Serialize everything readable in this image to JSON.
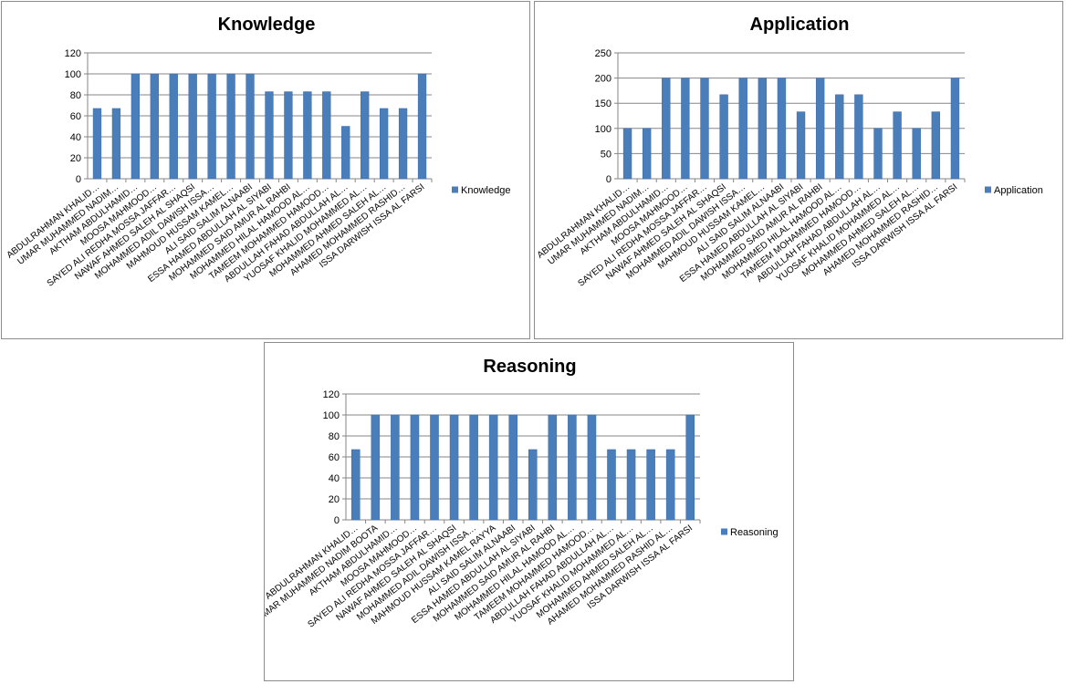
{
  "colors": {
    "bar": "#4a7ebb",
    "bar_edge": "#3a6aa8",
    "grid": "#868686",
    "axis": "#868686"
  },
  "chart_data": [
    {
      "type": "bar",
      "title": "Knowledge",
      "legend": "right",
      "grid": true,
      "ylim": [
        0,
        120
      ],
      "yticks": [
        0,
        20,
        40,
        60,
        80,
        100,
        120
      ],
      "categories": [
        "ABDULRAHMAN KHALID…",
        "UMAR MUHAMMED NADIM…",
        "AKTHAM ABDULHAMID…",
        "MOOSA MAHMOOD…",
        "SAYED ALI REDHA MOSSA JAFFAR…",
        "NAWAF AHMED SALEH AL SHAQSI",
        "MOHAMMED ADIL DAWISH ISSA…",
        "MAHMOUD HUSSAM KAMEL…",
        "ALI SAID SALIM ALNAABI",
        "ESSA HAMED ABDULLAH AL SIYABI",
        "MOHAMMED SAID AMUR AL RAHBI",
        "MOHAMMED HILAL HAMOOD AL…",
        "TAMEEM MOHAMMED HAMOOD…",
        "ABDULLAH FAHAD ABDULLAH AL…",
        "YUOSAF KHALID MOHAMMED AL…",
        "MOHAMMED AHMED SALEH AL…",
        "AHAMED MOHAMMED RASHID…",
        "ISSA DARWISH ISSA AL FARSI"
      ],
      "series": [
        {
          "name": "Knowledge",
          "values": [
            67,
            67,
            100,
            100,
            100,
            100,
            100,
            100,
            100,
            83,
            83,
            83,
            83,
            50,
            83,
            67,
            67,
            100
          ]
        }
      ]
    },
    {
      "type": "bar",
      "title": "Application",
      "legend": "right",
      "grid": true,
      "ylim": [
        0,
        250
      ],
      "yticks": [
        0,
        50,
        100,
        150,
        200,
        250
      ],
      "categories": [
        "ABDULRAHMAN KHALID…",
        "UMAR MUHAMMED NADIM…",
        "AKTHAM ABDULHAMID…",
        "MOOSA MAHMOOD…",
        "SAYED ALI REDHA MOSSA JAFFAR…",
        "NAWAF AHMED SALEH AL SHAQSI",
        "MOHAMMED ADIL DAWISH ISSA…",
        "MAHMOUD HUSSAM KAMEL…",
        "ALI SAID SALIM ALNAABI",
        "ESSA HAMED ABDULLAH AL SIYABI",
        "MOHAMMED SAID AMUR AL RAHBI",
        "MOHAMMED HILAL HAMOOD AL…",
        "TAMEEM MOHAMMED HAMOOD…",
        "ABDULLAH FAHAD ABDULLAH AL…",
        "YUOSAF KHALID MOHAMMED AL…",
        "MOHAMMED AHMED SALEH AL…",
        "AHAMED MOHAMMED RASHID…",
        "ISSA DARWISH ISSA AL FARSI"
      ],
      "series": [
        {
          "name": "Application",
          "values": [
            100,
            100,
            200,
            200,
            200,
            167,
            200,
            200,
            200,
            133,
            200,
            167,
            167,
            100,
            133,
            100,
            133,
            200
          ]
        }
      ]
    },
    {
      "type": "bar",
      "title": "Reasoning",
      "legend": "right",
      "grid": true,
      "ylim": [
        0,
        120
      ],
      "yticks": [
        0,
        20,
        40,
        60,
        80,
        100,
        120
      ],
      "categories": [
        "ABDULRAHMAN KHALID…",
        "UMAR MUHAMMED NADIM BOOTA",
        "AKTHAM ABDULHAMID…",
        "MOOSA MAHMOOD…",
        "SAYED ALI REDHA MOSSA JAFFAR…",
        "NAWAF AHMED SALEH AL SHAQSI",
        "MOHAMMED ADIL DAWISH ISSA…",
        "MAHMOUD HUSSAM KAMEL RAYYA",
        "ALI SAID SALIM ALNAABI",
        "ESSA HAMED ABDULLAH AL SIYABI",
        "MOHAMMED SAID AMUR AL RAHBI",
        "MOHAMMED HILAL HAMOOD AL…",
        "TAMEEM MOHAMMED HAMOOD…",
        "ABDULLAH FAHAD ABDULLAH AL…",
        "YUOSAF KHALID MOHAMMED AL…",
        "MOHAMMED AHMED SALEH AL…",
        "AHAMED MOHAMMED RASHID AL…",
        "ISSA DARWISH ISSA AL FARSI"
      ],
      "series": [
        {
          "name": "Reasoning",
          "values": [
            67,
            100,
            100,
            100,
            100,
            100,
            100,
            100,
            100,
            67,
            100,
            100,
            100,
            67,
            67,
            67,
            67,
            100
          ]
        }
      ]
    }
  ]
}
